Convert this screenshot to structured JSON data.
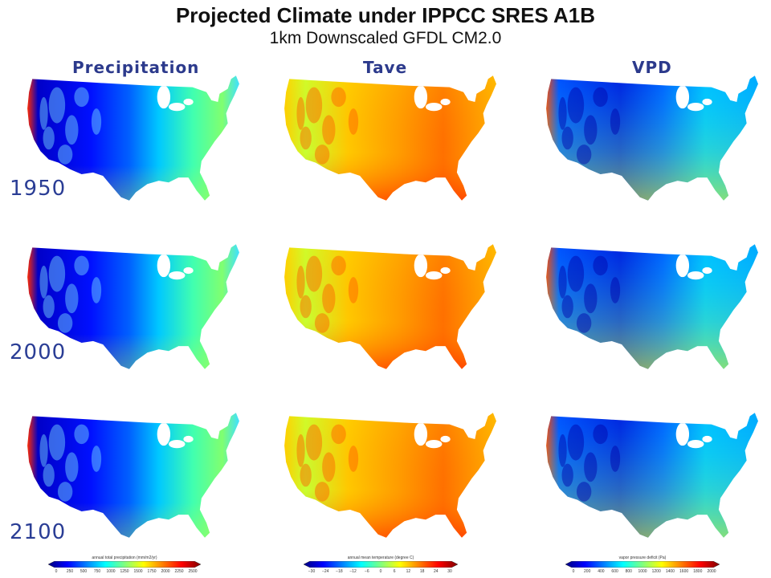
{
  "title": "Projected Climate under IPPCC SRES A1B",
  "subtitle": "1km Downscaled GFDL CM2.0",
  "columns": [
    "Precipitation",
    "Tave",
    "VPD"
  ],
  "years": [
    "1950",
    "2000",
    "2100"
  ],
  "colorbars": [
    {
      "title": "annual total precipitation (mm/m2/yr)",
      "ticks": [
        "0",
        "250",
        "500",
        "750",
        "1000",
        "1250",
        "1500",
        "1750",
        "2000",
        "2250",
        "2500"
      ]
    },
    {
      "title": "annual mean temperature (degree C)",
      "ticks": [
        "−30",
        "−24",
        "−18",
        "−12",
        "−6",
        "0",
        "6",
        "12",
        "18",
        "24",
        "30"
      ]
    },
    {
      "title": "vapor pressure deficit (Pa)",
      "ticks": [
        "0",
        "200",
        "400",
        "600",
        "800",
        "1000",
        "1200",
        "1400",
        "1600",
        "1800",
        "2000"
      ]
    }
  ],
  "colors": {
    "jet": [
      "#00007f",
      "#0000ff",
      "#007fff",
      "#00ffff",
      "#7fff7f",
      "#ffff00",
      "#ff7f00",
      "#ff0000",
      "#7f0000"
    ]
  }
}
